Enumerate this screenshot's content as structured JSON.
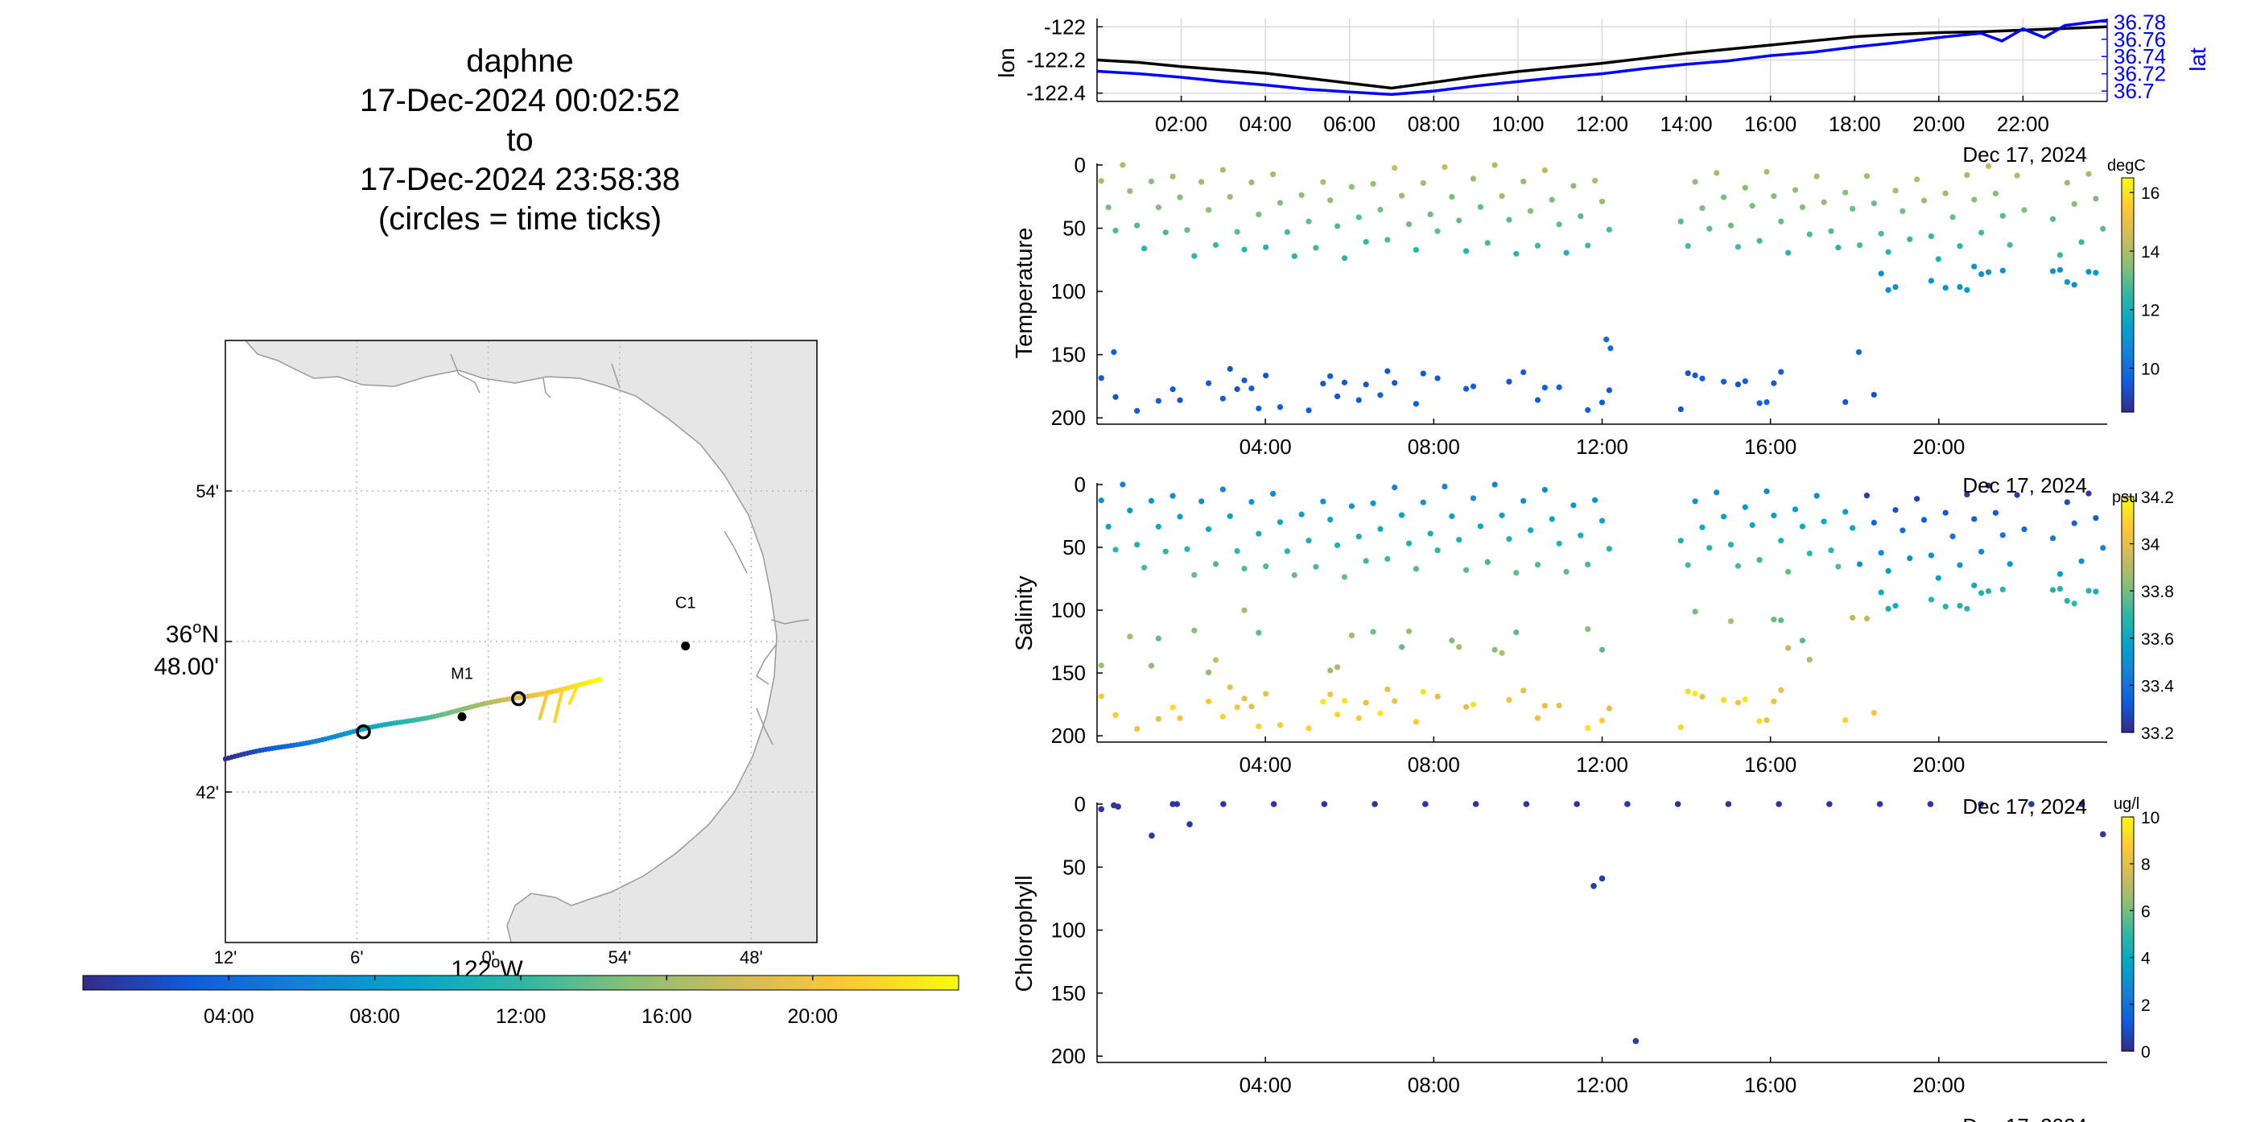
{
  "title": {
    "vehicle": "daphne",
    "start": "17-Dec-2024 00:02:52",
    "connector": "to",
    "end": "17-Dec-2024 23:58:38",
    "note": "(circles = time ticks)"
  },
  "colors": {
    "parula": [
      "#352a87",
      "#0f5cdd",
      "#1481d6",
      "#06a4ca",
      "#2eb7a4",
      "#87bf77",
      "#d1bb59",
      "#fec832",
      "#f9fb0e"
    ],
    "land": "#e6e6e6",
    "coast": "#9a9a9a",
    "grid": "#b8b8b8",
    "lon_line": "#000000",
    "lat_line": "#0000ff",
    "station": "#000000"
  },
  "chart_data": [
    {
      "type": "map",
      "name": "track-map",
      "x_tick_labels": [
        "12'",
        "6'",
        "0'",
        "54'",
        "48'"
      ],
      "x_tick_lon": [
        -122.2,
        -122.1,
        -122.0,
        -121.9,
        -121.8
      ],
      "x_center_label_deg": "122",
      "x_center_label_suffix": "W",
      "y_tick_labels": [
        "54'",
        "48.00'",
        "42'"
      ],
      "y_tick_lat": [
        36.9,
        36.8,
        36.7
      ],
      "y_center_label_deg": "36",
      "y_center_label_suffix": "N",
      "xlim": [
        -122.2,
        -121.75
      ],
      "ylim": [
        36.6,
        37.0
      ],
      "stations": [
        {
          "name": "M1",
          "lon": -122.02,
          "lat": 36.75
        },
        {
          "name": "C1",
          "lon": -121.85,
          "lat": 36.797
        }
      ],
      "time_tick_circles": [
        {
          "lon": -122.095,
          "lat": 36.74
        },
        {
          "lon": -121.977,
          "lat": 36.762
        }
      ],
      "track_start": {
        "lon": -122.2,
        "lat": 36.722
      },
      "track_end": {
        "lon": -121.915,
        "lat": 36.774
      },
      "colorbar": {
        "tick_labels": [
          "04:00",
          "08:00",
          "12:00",
          "16:00",
          "20:00"
        ],
        "tick_hours": [
          4,
          8,
          12,
          16,
          20
        ],
        "range_hours": [
          0,
          24
        ]
      }
    },
    {
      "type": "line",
      "name": "lon-lat",
      "ylabel": "lon",
      "ylabel_right": "lat",
      "x_tick_labels": [
        "02:00",
        "04:00",
        "06:00",
        "08:00",
        "10:00",
        "12:00",
        "14:00",
        "16:00",
        "18:00",
        "20:00",
        "22:00"
      ],
      "x_tick_hours": [
        2,
        4,
        6,
        8,
        10,
        12,
        14,
        16,
        18,
        20,
        22
      ],
      "date_label": "Dec 17, 2024",
      "xlim_hours": [
        0,
        24
      ],
      "y_tick_labels": [
        "-122",
        "-122.2",
        "-122.4"
      ],
      "y_ticks": [
        -122.0,
        -122.2,
        -122.4
      ],
      "ylim": [
        -122.45,
        -121.95
      ],
      "y2_tick_labels": [
        "36.78",
        "36.76",
        "36.74",
        "36.72",
        "36.7"
      ],
      "y2_ticks": [
        36.78,
        36.76,
        36.74,
        36.72,
        36.7
      ],
      "y2lim": [
        36.688,
        36.784
      ],
      "series": [
        {
          "name": "lon",
          "axis": "left",
          "hours": [
            0,
            1,
            2,
            3,
            4,
            5,
            6,
            7,
            8,
            9,
            10,
            11,
            12,
            13,
            14,
            15,
            16,
            17,
            18,
            19,
            20,
            21,
            22,
            23,
            24
          ],
          "values": [
            -122.2,
            -122.215,
            -122.24,
            -122.26,
            -122.28,
            -122.31,
            -122.34,
            -122.37,
            -122.335,
            -122.3,
            -122.27,
            -122.245,
            -122.22,
            -122.19,
            -122.16,
            -122.135,
            -122.11,
            -122.085,
            -122.06,
            -122.045,
            -122.035,
            -122.03,
            -122.02,
            -122.01,
            -122.0
          ]
        },
        {
          "name": "lat",
          "axis": "right",
          "hours": [
            0,
            1,
            2,
            3,
            4,
            5,
            6,
            7,
            8,
            9,
            10,
            11,
            12,
            13,
            14,
            15,
            16,
            17,
            18,
            19,
            20,
            21,
            21.5,
            22,
            22.5,
            23,
            24
          ],
          "values": [
            36.723,
            36.72,
            36.716,
            36.711,
            36.707,
            36.702,
            36.699,
            36.696,
            36.7,
            36.706,
            36.711,
            36.716,
            36.72,
            36.726,
            36.731,
            36.735,
            36.741,
            36.745,
            36.751,
            36.756,
            36.762,
            36.767,
            36.758,
            36.772,
            36.762,
            36.776,
            36.782
          ]
        }
      ]
    },
    {
      "type": "scatter",
      "name": "temperature",
      "ylabel": "Temperature",
      "x_tick_labels": [
        "04:00",
        "08:00",
        "12:00",
        "16:00",
        "20:00"
      ],
      "x_tick_hours": [
        4,
        8,
        12,
        16,
        20
      ],
      "date_label": "Dec 17, 2024",
      "xlim_hours": [
        0,
        24
      ],
      "y_tick_labels": [
        "0",
        "50",
        "100",
        "150",
        "200"
      ],
      "y_ticks": [
        0,
        50,
        100,
        150,
        200
      ],
      "ylim": [
        0,
        205
      ],
      "reversed_y": true,
      "colorbar": {
        "unit": "degC",
        "tick_labels": [
          "16",
          "14",
          "12",
          "10"
        ],
        "ticks": [
          16,
          14,
          12,
          10
        ],
        "range": [
          8.5,
          16.5
        ]
      }
    },
    {
      "type": "scatter",
      "name": "salinity",
      "ylabel": "Salinity",
      "x_tick_labels": [
        "04:00",
        "08:00",
        "12:00",
        "16:00",
        "20:00"
      ],
      "x_tick_hours": [
        4,
        8,
        12,
        16,
        20
      ],
      "date_label": "Dec 17, 2024",
      "xlim_hours": [
        0,
        24
      ],
      "y_tick_labels": [
        "0",
        "50",
        "100",
        "150",
        "200"
      ],
      "y_ticks": [
        0,
        50,
        100,
        150,
        200
      ],
      "ylim": [
        0,
        205
      ],
      "reversed_y": true,
      "colorbar": {
        "unit": "psu",
        "tick_labels": [
          "34.2",
          "34",
          "33.8",
          "33.6",
          "33.4",
          "33.2"
        ],
        "ticks": [
          34.2,
          34.0,
          33.8,
          33.6,
          33.4,
          33.2
        ],
        "range": [
          33.2,
          34.2
        ]
      }
    },
    {
      "type": "scatter",
      "name": "chlorophyll",
      "ylabel": "Chlorophyll",
      "x_tick_labels": [
        "04:00",
        "08:00",
        "12:00",
        "16:00",
        "20:00"
      ],
      "x_tick_hours": [
        4,
        8,
        12,
        16,
        20
      ],
      "date_label": "Dec 17, 2024",
      "xlim_hours": [
        0,
        24
      ],
      "y_tick_labels": [
        "0",
        "50",
        "100",
        "150",
        "200"
      ],
      "y_ticks": [
        0,
        50,
        100,
        150,
        200
      ],
      "ylim": [
        0,
        205
      ],
      "reversed_y": true,
      "colorbar": {
        "unit": "ug/l",
        "tick_labels": [
          "10",
          "8",
          "6",
          "4",
          "2",
          "0"
        ],
        "ticks": [
          10,
          8,
          6,
          4,
          2,
          0
        ],
        "range": [
          0,
          10
        ]
      },
      "points": [
        {
          "hour": 0.1,
          "depth": 4,
          "value": 0.3
        },
        {
          "hour": 0.4,
          "depth": 1,
          "value": 0.3
        },
        {
          "hour": 0.5,
          "depth": 2,
          "value": 0.3
        },
        {
          "hour": 1.3,
          "depth": 25,
          "value": 0.4
        },
        {
          "hour": 1.8,
          "depth": 0,
          "value": 0.3
        },
        {
          "hour": 1.9,
          "depth": 0,
          "value": 0.3
        },
        {
          "hour": 2.2,
          "depth": 16,
          "value": 0.3
        },
        {
          "hour": 3.0,
          "depth": 0,
          "value": 0.3
        },
        {
          "hour": 4.2,
          "depth": 0,
          "value": 0.3
        },
        {
          "hour": 5.4,
          "depth": 0,
          "value": 0.3
        },
        {
          "hour": 6.6,
          "depth": 0,
          "value": 0.3
        },
        {
          "hour": 7.8,
          "depth": 0,
          "value": 0.3
        },
        {
          "hour": 9.0,
          "depth": 0,
          "value": 0.3
        },
        {
          "hour": 10.2,
          "depth": 0,
          "value": 0.3
        },
        {
          "hour": 11.4,
          "depth": 0,
          "value": 0.3
        },
        {
          "hour": 11.8,
          "depth": 65,
          "value": 0.5
        },
        {
          "hour": 12.0,
          "depth": 59,
          "value": 0.5
        },
        {
          "hour": 12.6,
          "depth": 0,
          "value": 0.3
        },
        {
          "hour": 12.8,
          "depth": 188,
          "value": 0.4
        },
        {
          "hour": 13.8,
          "depth": 0,
          "value": 0.3
        },
        {
          "hour": 15.0,
          "depth": 0,
          "value": 0.3
        },
        {
          "hour": 16.2,
          "depth": 0,
          "value": 0.3
        },
        {
          "hour": 17.4,
          "depth": 0,
          "value": 0.3
        },
        {
          "hour": 18.6,
          "depth": 0,
          "value": 0.3
        },
        {
          "hour": 19.8,
          "depth": 0,
          "value": 0.3
        },
        {
          "hour": 21.0,
          "depth": 0,
          "value": 0.3
        },
        {
          "hour": 22.2,
          "depth": 0,
          "value": 0.3
        },
        {
          "hour": 23.4,
          "depth": 0,
          "value": 0.3
        },
        {
          "hour": 23.9,
          "depth": 24,
          "value": 0.4
        }
      ]
    }
  ]
}
